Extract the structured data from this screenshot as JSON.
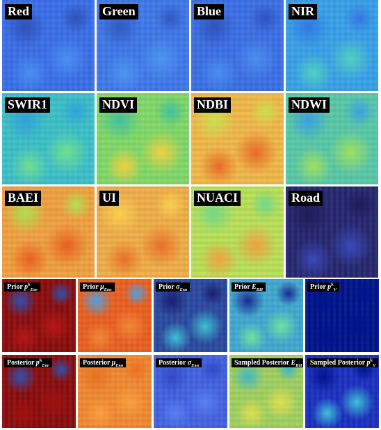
{
  "tiles": [
    {
      "label": {
        "text": "Red"
      }
    },
    {
      "label": {
        "text": "Green"
      }
    },
    {
      "label": {
        "text": "Blue"
      }
    },
    {
      "label": {
        "text": "NIR"
      }
    },
    {
      "label": {
        "text": "SWIR1"
      }
    },
    {
      "label": {
        "text": "NDVI"
      }
    },
    {
      "label": {
        "text": "NDBI"
      }
    },
    {
      "label": {
        "text": "NDWI"
      }
    },
    {
      "label": {
        "text": "BAEI"
      }
    },
    {
      "label": {
        "text": "UI"
      }
    },
    {
      "label": {
        "text": "NUACI"
      }
    },
    {
      "label": {
        "text": "Road"
      }
    }
  ],
  "outputs": [
    {
      "label": {
        "text": "Prior ",
        "var": "p",
        "sup": "k",
        "sub": "E",
        "subsub": "BP"
      }
    },
    {
      "label": {
        "text": "Prior ",
        "var": "μ",
        "sub": "E",
        "subsub": "BH"
      }
    },
    {
      "label": {
        "text": "Prior ",
        "var": "σ",
        "sub": "E",
        "subsub": "BH"
      }
    },
    {
      "label": {
        "text": "Prior ",
        "var": "E",
        "sub": "BH"
      }
    },
    {
      "label": {
        "text": "Prior ",
        "var": "p",
        "sup": "k",
        "sub": "V"
      }
    },
    {
      "label": {
        "text": "Posterior ",
        "var": "p",
        "sup": "k",
        "sub": "E",
        "subsub": "BP"
      }
    },
    {
      "label": {
        "text": "Posterior ",
        "var": "μ",
        "sub": "E",
        "subsub": "BH"
      }
    },
    {
      "label": {
        "text": "Posterior ",
        "var": "σ",
        "sub": "E",
        "subsub": "BH"
      }
    },
    {
      "label": {
        "text": "Sampled Posterior ",
        "var": "E",
        "sub": "BH"
      }
    },
    {
      "label": {
        "text": "Sampled Posterior ",
        "var": "p",
        "sup": "k",
        "sub": "V"
      }
    }
  ]
}
